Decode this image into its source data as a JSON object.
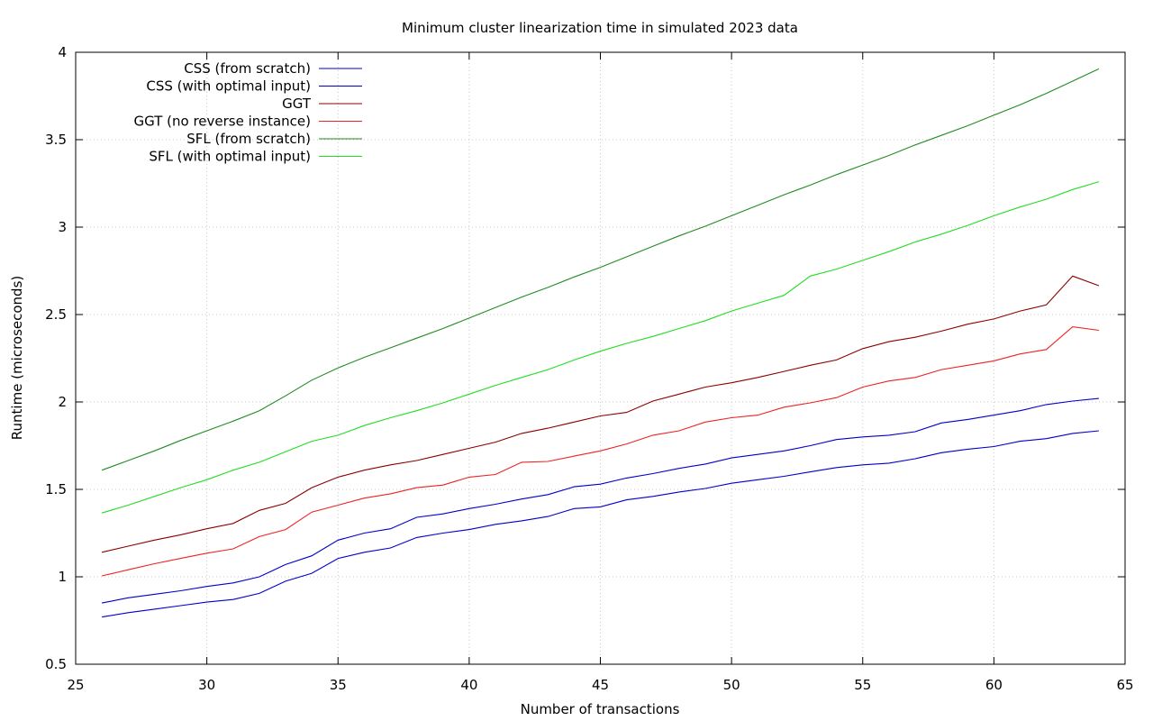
{
  "chart_data": {
    "type": "line",
    "title": "Minimum cluster linearization time in simulated 2023 data",
    "xlabel": "Number of transactions",
    "ylabel": "Runtime (microseconds)",
    "xlim": [
      25,
      65
    ],
    "ylim": [
      0.5,
      4
    ],
    "xticks": [
      25,
      30,
      35,
      40,
      45,
      50,
      55,
      60,
      65
    ],
    "xtick_labels": [
      "25",
      "30",
      "35",
      "40",
      "45",
      "50",
      "55",
      "60",
      "65"
    ],
    "yticks": [
      0.5,
      1,
      1.5,
      2,
      2.5,
      3,
      3.5,
      4
    ],
    "ytick_labels": [
      "0.5",
      "1",
      "1.5",
      "2",
      "2.5",
      "3",
      "3.5",
      "4"
    ],
    "grid": true,
    "legend_position": "top-left",
    "x": [
      26,
      27,
      28,
      29,
      30,
      31,
      32,
      33,
      34,
      35,
      36,
      37,
      38,
      39,
      40,
      41,
      42,
      43,
      44,
      45,
      46,
      47,
      48,
      49,
      50,
      51,
      52,
      53,
      54,
      55,
      56,
      57,
      58,
      59,
      60,
      61,
      62,
      63,
      64
    ],
    "series": [
      {
        "name": "CSS (from scratch)",
        "color": "#0000cc",
        "values": [
          0.85,
          0.88,
          0.9,
          0.92,
          0.945,
          0.965,
          1.0,
          1.07,
          1.12,
          1.21,
          1.25,
          1.275,
          1.34,
          1.36,
          1.39,
          1.415,
          1.445,
          1.47,
          1.515,
          1.53,
          1.565,
          1.59,
          1.62,
          1.645,
          1.68,
          1.7,
          1.72,
          1.75,
          1.785,
          1.8,
          1.81,
          1.83,
          1.88,
          1.9,
          1.925,
          1.95,
          1.985,
          2.005,
          2.02
        ]
      },
      {
        "name": "CSS (with optimal input)",
        "color": "#0000cc",
        "values": [
          0.77,
          0.795,
          0.815,
          0.835,
          0.855,
          0.87,
          0.905,
          0.975,
          1.02,
          1.105,
          1.14,
          1.165,
          1.225,
          1.25,
          1.27,
          1.3,
          1.32,
          1.345,
          1.39,
          1.4,
          1.44,
          1.46,
          1.485,
          1.505,
          1.535,
          1.555,
          1.575,
          1.6,
          1.625,
          1.64,
          1.65,
          1.675,
          1.71,
          1.73,
          1.745,
          1.775,
          1.79,
          1.82,
          1.835
        ]
      },
      {
        "name": "GGT",
        "color": "#8b0000",
        "values": [
          1.14,
          1.175,
          1.21,
          1.24,
          1.275,
          1.305,
          1.38,
          1.42,
          1.51,
          1.57,
          1.61,
          1.64,
          1.665,
          1.7,
          1.735,
          1.77,
          1.82,
          1.85,
          1.885,
          1.92,
          1.94,
          2.005,
          2.045,
          2.085,
          2.11,
          2.14,
          2.175,
          2.21,
          2.24,
          2.305,
          2.345,
          2.37,
          2.405,
          2.445,
          2.475,
          2.52,
          2.555,
          2.72,
          2.665
        ]
      },
      {
        "name": "GGT (no reverse instance)",
        "color": "#ee2222",
        "values": [
          1.005,
          1.04,
          1.075,
          1.105,
          1.135,
          1.16,
          1.23,
          1.27,
          1.37,
          1.41,
          1.45,
          1.475,
          1.51,
          1.525,
          1.57,
          1.585,
          1.655,
          1.66,
          1.69,
          1.72,
          1.76,
          1.81,
          1.835,
          1.885,
          1.91,
          1.925,
          1.97,
          1.995,
          2.025,
          2.085,
          2.12,
          2.14,
          2.185,
          2.21,
          2.235,
          2.275,
          2.3,
          2.43,
          2.41
        ]
      },
      {
        "name": "SFL (from scratch)",
        "color": "#228b22",
        "values": [
          1.61,
          1.665,
          1.72,
          1.78,
          1.835,
          1.89,
          1.95,
          2.035,
          2.125,
          2.195,
          2.255,
          2.31,
          2.365,
          2.42,
          2.48,
          2.54,
          2.6,
          2.655,
          2.715,
          2.77,
          2.83,
          2.89,
          2.95,
          3.005,
          3.065,
          3.125,
          3.185,
          3.24,
          3.3,
          3.355,
          3.41,
          3.47,
          3.525,
          3.58,
          3.64,
          3.7,
          3.765,
          3.835,
          3.905
        ]
      },
      {
        "name": "SFL (with optimal input)",
        "color": "#22dd22",
        "values": [
          1.365,
          1.41,
          1.46,
          1.51,
          1.555,
          1.61,
          1.655,
          1.715,
          1.775,
          1.81,
          1.865,
          1.91,
          1.95,
          1.995,
          2.045,
          2.095,
          2.14,
          2.185,
          2.24,
          2.29,
          2.335,
          2.375,
          2.42,
          2.465,
          2.52,
          2.565,
          2.61,
          2.72,
          2.76,
          2.81,
          2.86,
          2.915,
          2.96,
          3.01,
          3.065,
          3.115,
          3.16,
          3.215,
          3.26
        ]
      }
    ]
  }
}
